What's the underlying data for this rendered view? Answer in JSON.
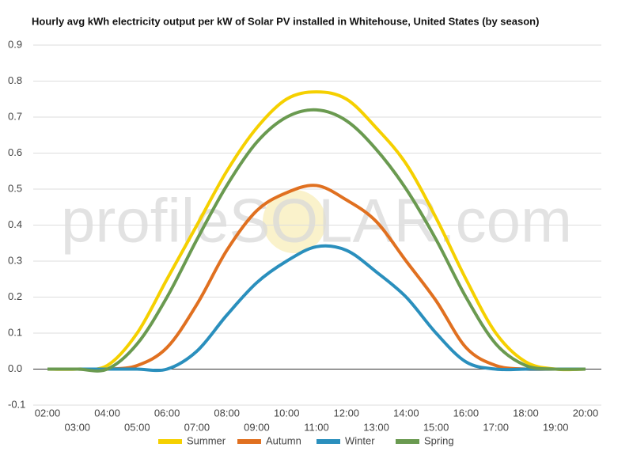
{
  "chart_data": {
    "type": "line",
    "title": "Hourly avg kWh electricity output per kW of Solar PV installed in Whitehouse, United States (by season)",
    "watermark": "profileSOLAR.com",
    "categories": [
      "02:00",
      "03:00",
      "04:00",
      "05:00",
      "06:00",
      "07:00",
      "08:00",
      "09:00",
      "10:00",
      "11:00",
      "12:00",
      "13:00",
      "14:00",
      "15:00",
      "16:00",
      "17:00",
      "18:00",
      "19:00",
      "20:00"
    ],
    "series": [
      {
        "name": "Summer",
        "color": "#f5d000",
        "values": [
          0,
          0,
          0.01,
          0.1,
          0.25,
          0.4,
          0.55,
          0.67,
          0.75,
          0.77,
          0.75,
          0.67,
          0.57,
          0.42,
          0.25,
          0.1,
          0.02,
          0,
          0
        ]
      },
      {
        "name": "Autumn",
        "color": "#e07020",
        "values": [
          0,
          0,
          0,
          0.01,
          0.06,
          0.18,
          0.33,
          0.44,
          0.49,
          0.51,
          0.47,
          0.41,
          0.3,
          0.19,
          0.06,
          0.01,
          0,
          0,
          0
        ]
      },
      {
        "name": "Winter",
        "color": "#2a8fbd",
        "values": [
          0,
          0,
          0,
          0,
          0,
          0.05,
          0.15,
          0.24,
          0.3,
          0.34,
          0.33,
          0.27,
          0.2,
          0.1,
          0.02,
          0,
          0,
          0,
          0
        ]
      },
      {
        "name": "Spring",
        "color": "#6a9a50",
        "values": [
          0,
          0,
          0,
          0.07,
          0.2,
          0.36,
          0.51,
          0.63,
          0.7,
          0.72,
          0.69,
          0.61,
          0.5,
          0.36,
          0.2,
          0.07,
          0.01,
          0,
          0
        ]
      }
    ],
    "ylim": [
      -0.1,
      0.9
    ],
    "yticks": [
      -0.1,
      {
        "value": 0,
        "label": "0.0"
      },
      0.1,
      0.2,
      0.3,
      0.4,
      0.5,
      0.6,
      0.7,
      0.8,
      0.9
    ],
    "grid": true,
    "legend": "bottom"
  }
}
